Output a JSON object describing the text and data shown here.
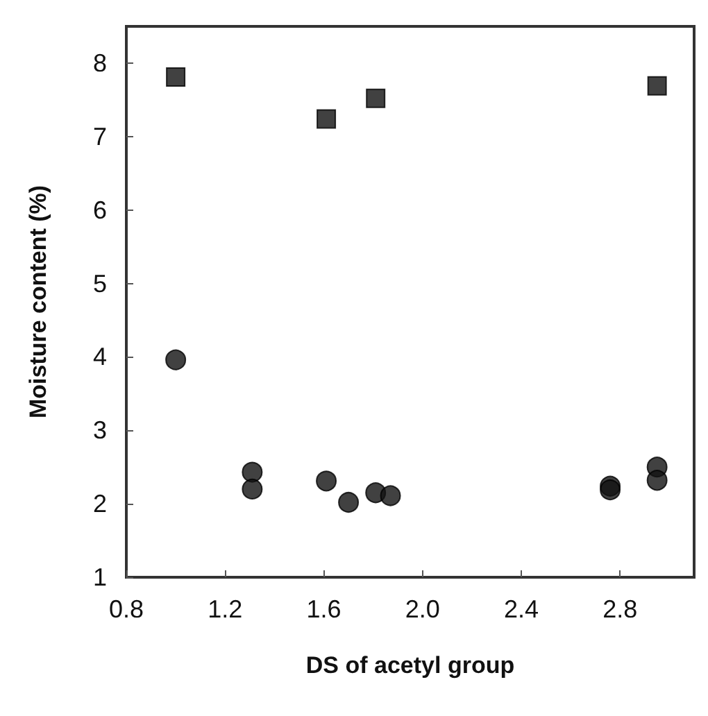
{
  "chart_data": {
    "type": "scatter",
    "xlabel": "DS of acetyl group",
    "ylabel": "Moisture content (%)",
    "xlim": [
      0.8,
      3.1
    ],
    "xticks": [
      0.8,
      1.2,
      1.6,
      {
        "value": 2,
        "label": "2.0"
      },
      2.4,
      2.8
    ],
    "ylim": [
      1,
      8.5
    ],
    "yticks": [
      1,
      2,
      3,
      4,
      5,
      6,
      7,
      8
    ],
    "grid": false,
    "series": [
      {
        "color": "#111111",
        "marker": "square",
        "x": [
          1.0,
          1.61,
          1.81,
          2.95
        ],
        "values": [
          7.81,
          7.24,
          7.52,
          7.69
        ]
      },
      {
        "color": "#111111",
        "marker": "circle",
        "x": [
          1.0,
          1.31,
          1.31,
          1.61,
          1.7,
          1.81,
          1.87,
          2.76,
          2.76,
          2.95,
          2.95
        ],
        "values": [
          3.96,
          2.43,
          2.2,
          2.31,
          2.02,
          2.15,
          2.11,
          2.24,
          2.19,
          2.5,
          2.32
        ]
      }
    ]
  }
}
